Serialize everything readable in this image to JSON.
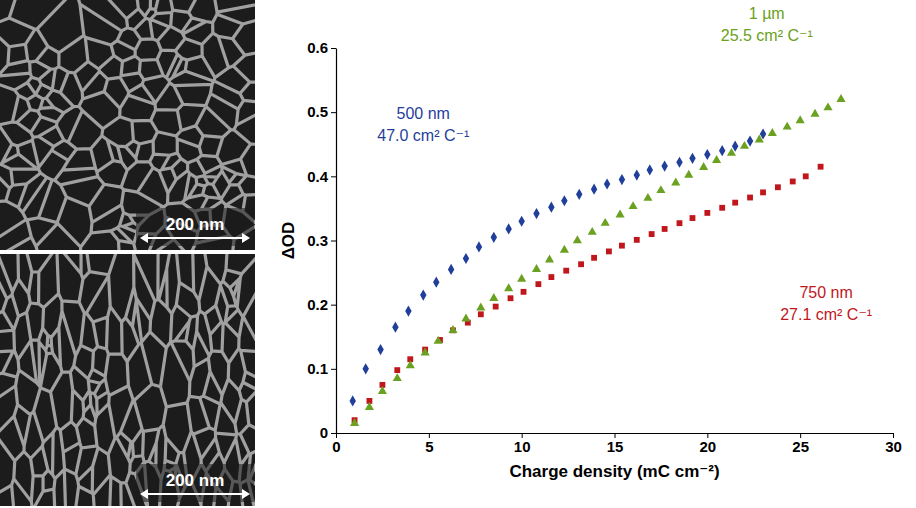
{
  "chart_data": {
    "type": "scatter",
    "x_label": "Charge density (mC cm⁻²)",
    "y_label": "ΔOD",
    "xlim": [
      0,
      30
    ],
    "xticks": [
      0,
      5,
      10,
      15,
      20,
      25,
      30
    ],
    "ylim": [
      0,
      0.6
    ],
    "yticks": [
      0,
      0.1,
      0.2,
      0.3,
      0.4,
      0.5,
      0.6
    ],
    "grid": false,
    "series": [
      {
        "name": "500 nm",
        "note": "47.0 cm² C⁻¹",
        "color": "#1f3f9a",
        "marker": "diamond",
        "x": [
          0.9,
          1.6,
          2.4,
          3.2,
          3.9,
          4.7,
          5.4,
          6.2,
          7.0,
          7.7,
          8.5,
          9.3,
          10.0,
          10.8,
          11.6,
          12.3,
          13.1,
          13.9,
          14.6,
          15.4,
          16.2,
          16.9,
          17.7,
          18.5,
          19.2,
          20.0,
          20.8,
          21.5,
          22.3,
          23.0
        ],
        "values": [
          0.05,
          0.1,
          0.13,
          0.165,
          0.19,
          0.215,
          0.235,
          0.255,
          0.272,
          0.29,
          0.305,
          0.318,
          0.33,
          0.342,
          0.352,
          0.362,
          0.372,
          0.38,
          0.388,
          0.395,
          0.402,
          0.41,
          0.416,
          0.422,
          0.428,
          0.434,
          0.44,
          0.447,
          0.455,
          0.466
        ]
      },
      {
        "name": "750 nm",
        "note": "27.1 cm² C⁻¹",
        "color": "#c0171c",
        "marker": "square",
        "x": [
          1.0,
          1.8,
          2.5,
          3.3,
          4.0,
          4.8,
          5.6,
          6.3,
          7.1,
          7.8,
          8.6,
          9.4,
          10.1,
          10.9,
          11.6,
          12.4,
          13.2,
          13.9,
          14.7,
          15.4,
          16.2,
          17.0,
          17.7,
          18.5,
          19.2,
          20.0,
          20.8,
          21.5,
          22.3,
          23.0,
          23.8,
          24.6,
          25.3,
          26.1
        ],
        "values": [
          0.02,
          0.05,
          0.075,
          0.098,
          0.115,
          0.13,
          0.145,
          0.16,
          0.172,
          0.185,
          0.197,
          0.21,
          0.22,
          0.232,
          0.243,
          0.253,
          0.263,
          0.273,
          0.283,
          0.292,
          0.301,
          0.31,
          0.318,
          0.327,
          0.335,
          0.343,
          0.351,
          0.359,
          0.367,
          0.375,
          0.383,
          0.392,
          0.4,
          0.415
        ]
      },
      {
        "name": "1 µm",
        "note": "25.5 cm² C⁻¹",
        "color": "#6aa121",
        "marker": "triangle",
        "x": [
          1.0,
          1.8,
          2.5,
          3.3,
          4.0,
          4.8,
          5.5,
          6.3,
          7.0,
          7.8,
          8.5,
          9.3,
          10.0,
          10.8,
          11.5,
          12.3,
          13.0,
          13.8,
          14.5,
          15.3,
          16.0,
          16.8,
          17.5,
          18.3,
          19.0,
          19.8,
          20.5,
          21.3,
          22.0,
          22.8,
          23.5,
          24.3,
          25.0,
          25.8,
          26.5,
          27.2
        ],
        "values": [
          0.015,
          0.04,
          0.065,
          0.085,
          0.105,
          0.125,
          0.143,
          0.16,
          0.178,
          0.195,
          0.21,
          0.225,
          0.24,
          0.255,
          0.27,
          0.285,
          0.3,
          0.313,
          0.327,
          0.34,
          0.353,
          0.366,
          0.378,
          0.39,
          0.402,
          0.414,
          0.425,
          0.436,
          0.447,
          0.457,
          0.467,
          0.477,
          0.487,
          0.497,
          0.507,
          0.52
        ]
      }
    ]
  },
  "micrographs": [
    {
      "scale_bar": "200 nm"
    },
    {
      "scale_bar": "200 nm"
    }
  ]
}
